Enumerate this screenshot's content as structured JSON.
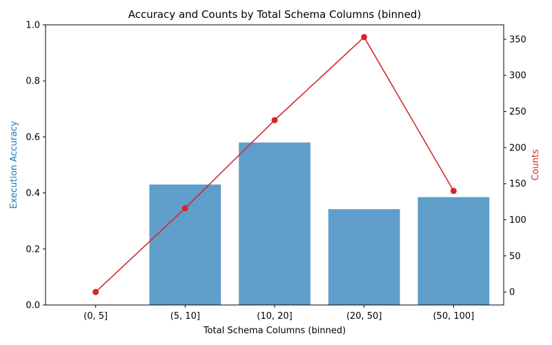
{
  "chart_data": {
    "type": "bar",
    "title": "Accuracy and Counts by Total Schema Columns (binned)",
    "xlabel": "Total Schema Columns (binned)",
    "categories": [
      "(0, 5]",
      "(5, 10]",
      "(10, 20]",
      "(20, 50]",
      "(50, 100]"
    ],
    "series": [
      {
        "type": "bar",
        "axis": "left",
        "color": "#5f9ecb",
        "values": [
          0.0,
          0.43,
          0.58,
          0.342,
          0.385
        ]
      },
      {
        "type": "line",
        "axis": "right",
        "color": "#d62728",
        "marker": "circle",
        "values": [
          0,
          116,
          238,
          353,
          140
        ]
      }
    ],
    "y_left": {
      "label": "Execution Accuracy",
      "label_color": "#1f77b4",
      "lim": [
        0,
        1.0
      ],
      "ticks": [
        0.0,
        0.2,
        0.4,
        0.6,
        0.8,
        1.0
      ]
    },
    "y_right": {
      "label": "Counts",
      "label_color": "#d62728",
      "lim": [
        -18,
        370
      ],
      "ticks": [
        0,
        50,
        100,
        150,
        200,
        250,
        300,
        350
      ]
    },
    "grid": false,
    "legend": "none"
  }
}
